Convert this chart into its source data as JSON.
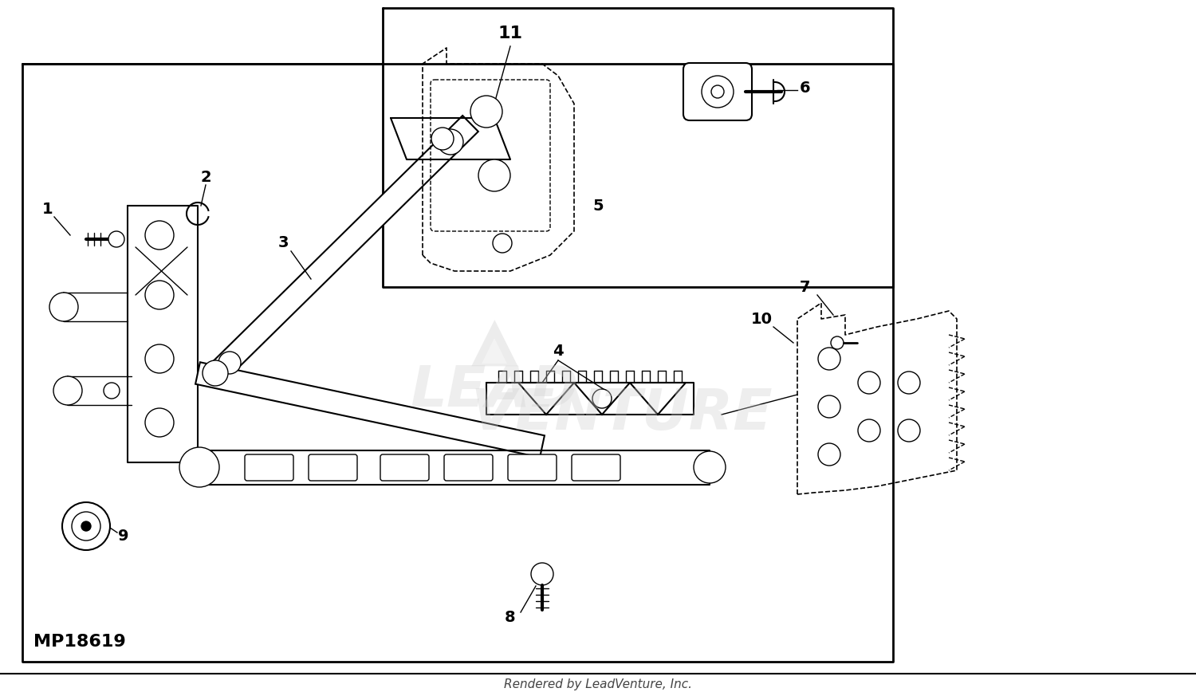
{
  "fig_width": 15.0,
  "fig_height": 8.68,
  "dpi": 100,
  "bg_color": "#ffffff",
  "line_color": "#000000",
  "diagram_id": "MP18619",
  "footer_text": "Rendered by LeadVenture, Inc.",
  "watermark_line1": "LEAD",
  "watermark_line2": "VENTURE",
  "watermark_color": "#d0d0d0"
}
